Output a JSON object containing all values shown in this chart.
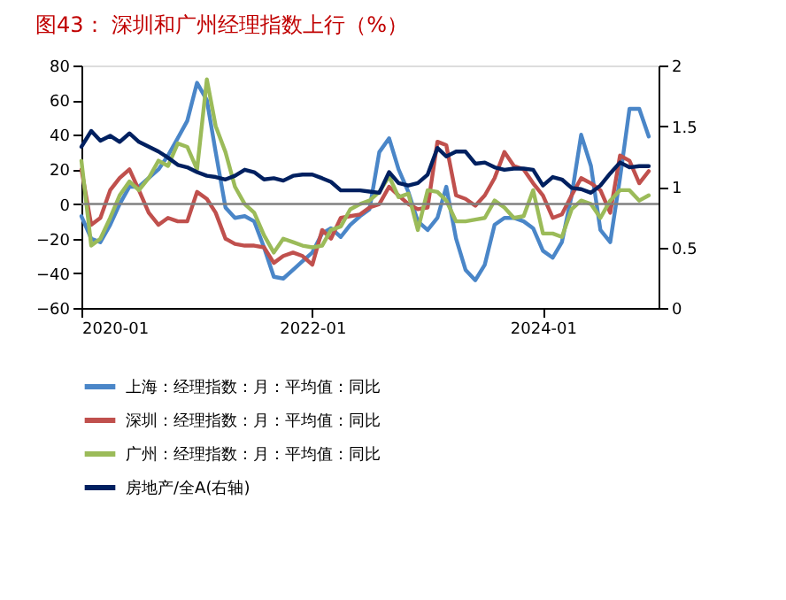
{
  "chart_data": {
    "type": "line",
    "title": "图43：  深圳和广州经理指数上行（%）",
    "x": [
      "2020-01",
      "2020-02",
      "2020-03",
      "2020-04",
      "2020-05",
      "2020-06",
      "2020-07",
      "2020-08",
      "2020-09",
      "2020-10",
      "2020-11",
      "2020-12",
      "2021-01",
      "2021-02",
      "2021-03",
      "2021-04",
      "2021-05",
      "2021-06",
      "2021-07",
      "2021-08",
      "2021-09",
      "2021-10",
      "2021-11",
      "2021-12",
      "2022-01",
      "2022-02",
      "2022-03",
      "2022-04",
      "2022-05",
      "2022-06",
      "2022-07",
      "2022-08",
      "2022-09",
      "2022-10",
      "2022-11",
      "2022-12",
      "2023-01",
      "2023-02",
      "2023-03",
      "2023-04",
      "2023-05",
      "2023-06",
      "2023-07",
      "2023-08",
      "2023-09",
      "2023-10",
      "2023-11",
      "2023-12",
      "2024-01",
      "2024-02",
      "2024-03",
      "2024-04",
      "2024-05",
      "2024-06",
      "2024-07",
      "2024-08",
      "2024-09",
      "2024-10",
      "2024-11",
      "2024-12"
    ],
    "series": [
      {
        "name": "上海：经理指数：月：平均值：同比",
        "color": "#4a86c8",
        "values": [
          -7,
          -20,
          -22,
          -12,
          0,
          10,
          10,
          15,
          20,
          28,
          38,
          48,
          70,
          60,
          30,
          -2,
          -8,
          -7,
          -10,
          -25,
          -42,
          -43,
          -38,
          -33,
          -28,
          -17,
          -14,
          -19,
          -12,
          -7,
          -3,
          30,
          38,
          20,
          7,
          -10,
          -15,
          -8,
          10,
          -20,
          -38,
          -44,
          -35,
          -12,
          -8,
          -8,
          -10,
          -14,
          -27,
          -31,
          -22,
          5,
          40,
          22,
          -15,
          -22,
          15,
          55,
          55,
          39
        ]
      },
      {
        "name": "深圳：经理指数：月：平均值：同比",
        "color": "#c0504d",
        "values": [
          20,
          -12,
          -8,
          8,
          15,
          20,
          8,
          -5,
          -12,
          -8,
          -10,
          -10,
          7,
          3,
          -5,
          -20,
          -23,
          -24,
          -24,
          -25,
          -34,
          -30,
          -28,
          -30,
          -35,
          -15,
          -20,
          -8,
          -7,
          -6,
          -2,
          0,
          10,
          5,
          0,
          -3,
          -2,
          36,
          34,
          5,
          3,
          -1,
          5,
          15,
          30,
          22,
          20,
          12,
          5,
          -8,
          -6,
          5,
          15,
          12,
          8,
          -5,
          28,
          25,
          12,
          19
        ]
      },
      {
        "name": "广州：经理指数：月：平均值：同比",
        "color": "#9bbb59",
        "values": [
          25,
          -24,
          -20,
          -8,
          5,
          13,
          8,
          15,
          25,
          22,
          35,
          33,
          20,
          72,
          45,
          30,
          10,
          0,
          -5,
          -18,
          -28,
          -20,
          -22,
          -24,
          -25,
          -24,
          -15,
          -13,
          -3,
          0,
          2,
          7,
          16,
          4,
          6,
          -15,
          8,
          7,
          2,
          -10,
          -10,
          -9,
          -8,
          2,
          -2,
          -8,
          -7,
          8,
          -17,
          -17,
          -19,
          -3,
          2,
          0,
          -8,
          2,
          8,
          8,
          2,
          5
        ]
      },
      {
        "name": "房地产/全A(右轴)",
        "color": "#002060",
        "axis": "y2",
        "values": [
          1.33,
          1.46,
          1.38,
          1.42,
          1.37,
          1.44,
          1.37,
          1.33,
          1.29,
          1.24,
          1.18,
          1.16,
          1.12,
          1.09,
          1.08,
          1.06,
          1.09,
          1.14,
          1.12,
          1.06,
          1.07,
          1.05,
          1.09,
          1.1,
          1.1,
          1.07,
          1.04,
          0.97,
          0.97,
          0.97,
          0.96,
          0.95,
          1.12,
          1.03,
          1.01,
          1.03,
          1.1,
          1.32,
          1.25,
          1.29,
          1.29,
          1.19,
          1.2,
          1.16,
          1.14,
          1.15,
          1.15,
          1.14,
          1.01,
          1.08,
          1.06,
          0.99,
          0.98,
          0.95,
          1.01,
          1.11,
          1.2,
          1.16,
          1.17,
          1.17
        ]
      }
    ],
    "xlim": [
      "2020-01",
      "2025-01"
    ],
    "xticks": [
      "2020-01",
      "2022-01",
      "2024-01"
    ],
    "ylim": [
      -60,
      80
    ],
    "yticks": [
      -60,
      -40,
      -20,
      0,
      20,
      40,
      60,
      80
    ],
    "y2lim": [
      0,
      2
    ],
    "y2ticks": [
      0,
      0.5,
      1,
      1.5,
      2
    ],
    "ref_lines": [
      {
        "axis": "y",
        "value": 0,
        "color": "#808080"
      }
    ],
    "grid": false,
    "legend": "bottom",
    "marker": "none",
    "line_style": "solid"
  }
}
